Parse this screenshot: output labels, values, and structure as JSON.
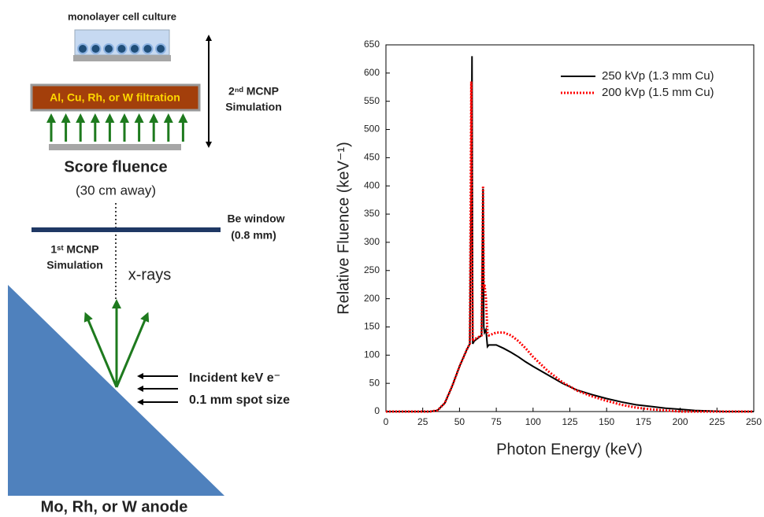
{
  "diagram": {
    "culture_label": "monolayer cell culture",
    "filtration_label": "Al, Cu, Rh, or W filtration",
    "sim2_line1": "2ⁿᵈ MCNP",
    "sim2_line2": "Simulation",
    "score_label": "Score fluence",
    "score_distance": "(30 cm away)",
    "window_label": "Be window",
    "window_thickness": "(0.8 mm)",
    "sim1_line1": "1ˢᵗ MCNP",
    "sim1_line2": "Simulation",
    "xray_label": "x-rays",
    "incident_line1": "Incident keV e⁻",
    "incident_line2": "0.1 mm spot size",
    "anode_label": "Mo, Rh, or W anode"
  },
  "chart_data": {
    "type": "line",
    "xlabel": "Photon Energy (keV)",
    "ylabel": "Relative Fluence (keV⁻¹)",
    "x": [
      0,
      10,
      20,
      30,
      35,
      40,
      45,
      50,
      55,
      57,
      58,
      58.5,
      59,
      60,
      65,
      66,
      66.5,
      67,
      68,
      69,
      70,
      75,
      80,
      85,
      90,
      95,
      100,
      110,
      120,
      130,
      140,
      150,
      160,
      170,
      180,
      190,
      200,
      210,
      220,
      230,
      240,
      250
    ],
    "series": [
      {
        "name": "250 kVp (1.3 mm Cu)",
        "color": "#000000",
        "dash": "solid",
        "values": [
          0,
          0,
          0,
          0,
          2,
          15,
          45,
          80,
          110,
          120,
          400,
          630,
          120,
          125,
          135,
          395,
          150,
          140,
          145,
          115,
          118,
          118,
          112,
          105,
          97,
          88,
          80,
          65,
          50,
          38,
          30,
          23,
          17,
          12,
          9,
          6,
          4,
          2,
          1,
          0,
          0,
          0
        ]
      },
      {
        "name": "200 kVp (1.5 mm Cu)",
        "color": "#ff0000",
        "dash": "dotted",
        "values": [
          0,
          0,
          0,
          0,
          2,
          15,
          45,
          80,
          110,
          120,
          585,
          300,
          125,
          128,
          135,
          400,
          220,
          225,
          200,
          140,
          135,
          140,
          140,
          135,
          125,
          112,
          97,
          72,
          52,
          37,
          27,
          19,
          12,
          7,
          4,
          2,
          0,
          0,
          0,
          0,
          0,
          0
        ]
      }
    ],
    "xlim": [
      0,
      250
    ],
    "xticks": [
      0,
      25,
      50,
      75,
      100,
      125,
      150,
      175,
      200,
      225,
      250
    ],
    "ylim": [
      0,
      650
    ],
    "yticks": [
      0,
      50,
      100,
      150,
      200,
      250,
      300,
      350,
      400,
      450,
      500,
      550,
      600,
      650
    ],
    "grid": false,
    "legend": "upper right"
  }
}
